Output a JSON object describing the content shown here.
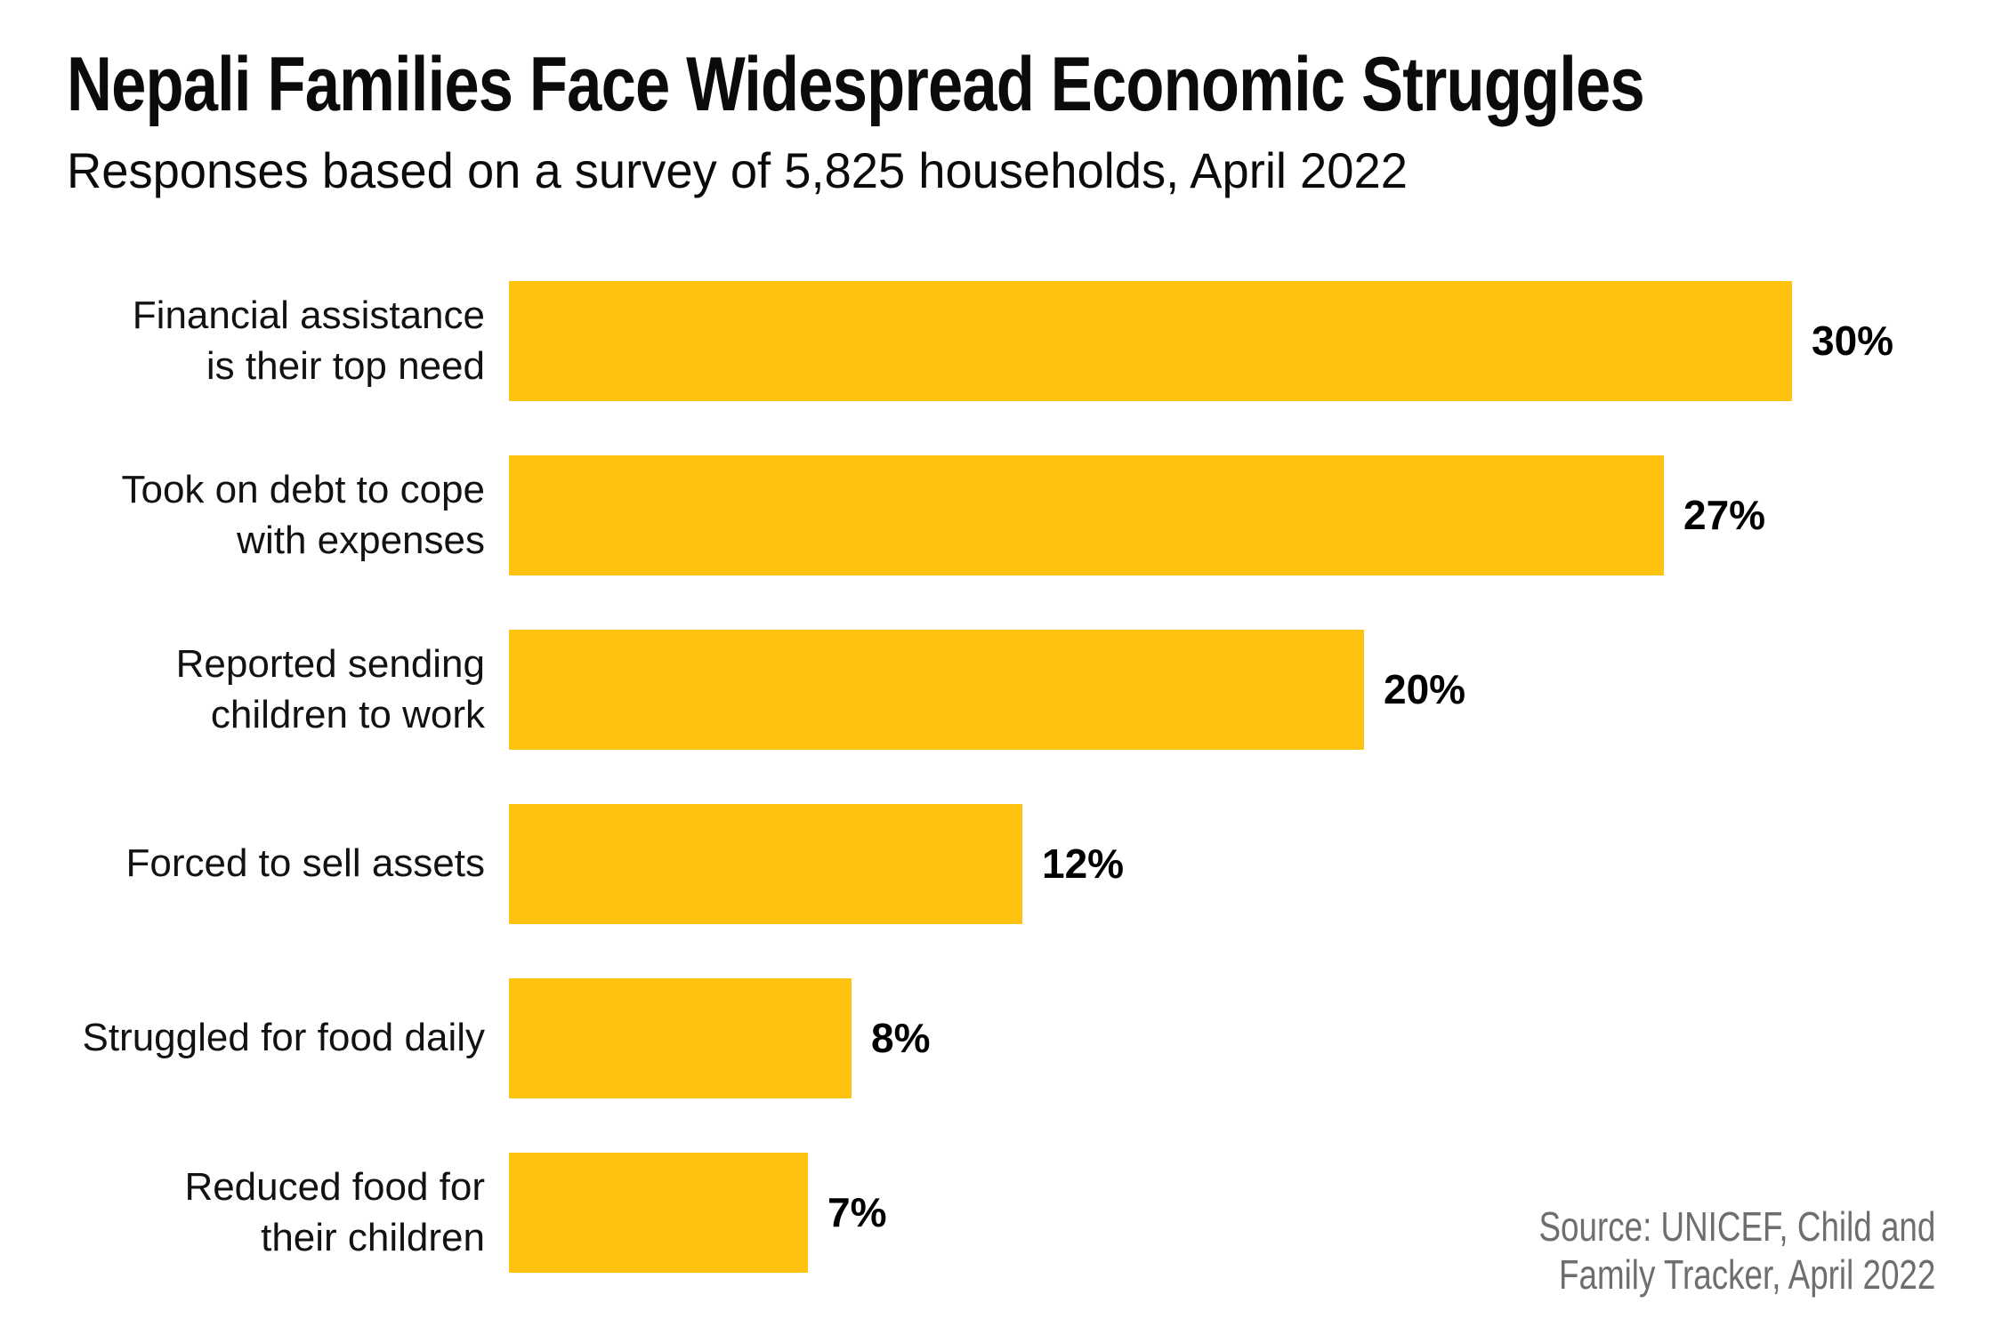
{
  "header": {
    "title": "Nepali Families Face Widespread Economic Struggles",
    "subtitle": "Responses based on a survey of 5,825 households, April 2022"
  },
  "source": {
    "text": "Source: UNICEF, Child and\nFamily Tracker, April 2022"
  },
  "colors": {
    "bar": "#FFC20E",
    "title_text": "#0b0b0b",
    "label_text": "#121212",
    "value_text": "#000000",
    "source_text": "#6e6e6e"
  },
  "chart_data": {
    "type": "bar",
    "orientation": "horizontal",
    "title": "Nepali Families Face Widespread Economic Struggles",
    "subtitle": "Responses based on a survey of 5,825 households, April 2022",
    "categories": [
      "Financial assistance is their top need",
      "Took on debt to cope with expenses",
      "Reported sending children to work",
      "Forced to sell assets",
      "Struggled for food daily",
      "Reduced food for their children"
    ],
    "display_labels": [
      "Financial assistance\nis their top need",
      "Took on debt to cope\nwith expenses",
      "Reported sending\nchildren to work",
      "Forced to sell assets",
      "Struggled for food daily",
      "Reduced food for\ntheir children"
    ],
    "values": [
      30,
      27,
      20,
      12,
      8,
      7
    ],
    "value_labels": [
      "30%",
      "27%",
      "20%",
      "12%",
      "8%",
      "7%"
    ],
    "xlim": [
      0,
      30
    ],
    "grid": false,
    "legend": false,
    "bar_color": "#FFC20E",
    "value_label_position": "end-of-bar",
    "category_label_position": "left",
    "source": "Source: UNICEF, Child and Family Tracker, April 2022"
  }
}
